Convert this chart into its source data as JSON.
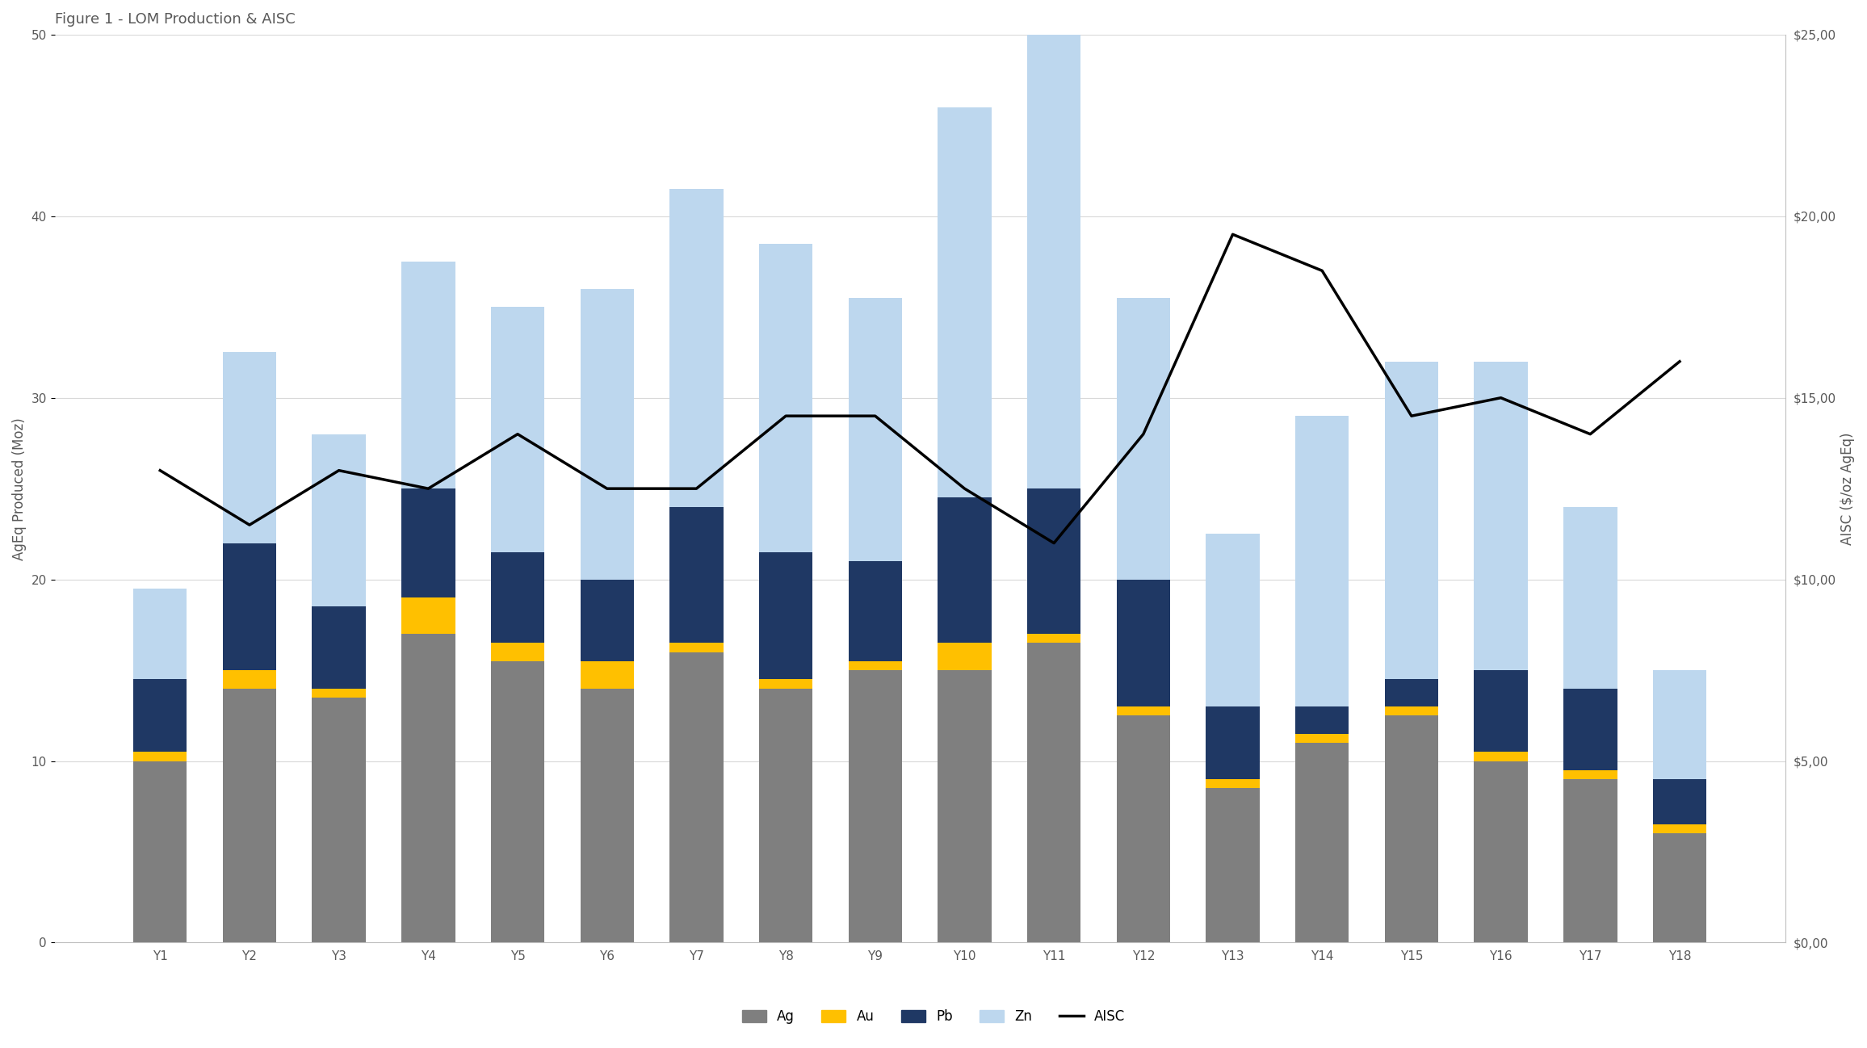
{
  "categories": [
    "Y1",
    "Y2",
    "Y3",
    "Y4",
    "Y5",
    "Y6",
    "Y7",
    "Y8",
    "Y9",
    "Y10",
    "Y11",
    "Y12",
    "Y13",
    "Y14",
    "Y15",
    "Y16",
    "Y17",
    "Y18"
  ],
  "Ag": [
    10.0,
    14.0,
    13.5,
    17.0,
    15.5,
    14.0,
    16.0,
    14.0,
    15.0,
    15.0,
    16.5,
    12.5,
    8.5,
    11.0,
    12.5,
    10.0,
    9.0,
    6.0
  ],
  "Au": [
    0.5,
    1.0,
    0.5,
    2.0,
    1.0,
    1.5,
    0.5,
    0.5,
    0.5,
    1.5,
    0.5,
    0.5,
    0.5,
    0.5,
    0.5,
    0.5,
    0.5,
    0.5
  ],
  "Pb": [
    4.0,
    7.0,
    4.5,
    6.0,
    5.0,
    4.5,
    7.5,
    7.0,
    5.5,
    8.0,
    8.0,
    7.0,
    4.0,
    1.5,
    1.5,
    4.5,
    4.5,
    2.5
  ],
  "Zn": [
    5.0,
    10.5,
    9.5,
    12.5,
    13.5,
    16.0,
    17.5,
    17.0,
    14.5,
    21.5,
    25.5,
    15.5,
    9.5,
    16.0,
    17.5,
    17.0,
    10.0,
    6.0
  ],
  "AISC": [
    13.0,
    11.5,
    13.0,
    12.5,
    14.0,
    12.5,
    12.5,
    14.5,
    14.5,
    12.5,
    11.0,
    14.0,
    19.5,
    18.5,
    14.5,
    15.0,
    14.0,
    16.0
  ],
  "title": "Figure 1 - LOM Production & AISC",
  "ylabel_left": "AgEq Produced (Moz)",
  "ylabel_right": "AISC ($/oz AgEq)",
  "ylim_left": [
    0,
    50
  ],
  "ylim_right": [
    0,
    25
  ],
  "yticks_left": [
    0,
    10,
    20,
    30,
    40,
    50
  ],
  "yticks_right_labels": [
    "$0,00",
    "$5,00",
    "$10,00",
    "$15,00",
    "$20,00",
    "$25,00"
  ],
  "yticks_right_vals": [
    0,
    5,
    10,
    15,
    20,
    25
  ],
  "color_Ag": "#7F7F7F",
  "color_Au": "#FFC000",
  "color_Pb": "#1F3864",
  "color_Zn": "#BDD7EE",
  "color_AISC": "#000000",
  "background_color": "#FFFFFF",
  "grid_color": "#D9D9D9",
  "title_fontsize": 13,
  "axis_label_fontsize": 12,
  "tick_fontsize": 11,
  "legend_fontsize": 12
}
